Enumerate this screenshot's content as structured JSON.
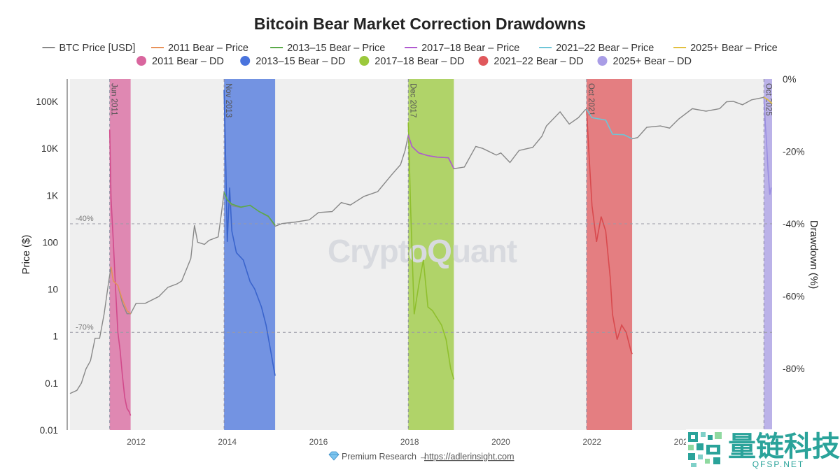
{
  "chart_data": {
    "type": "line",
    "title": "Bitcoin Bear Market Correction Drawdowns",
    "ylabel_left": "Price ($)",
    "ylabel_right": "Drawdown (%)",
    "y_left_scale": "log",
    "y_left_range": [
      0.01,
      300000
    ],
    "y_left_ticks": [
      {
        "value": 0.01,
        "label": "0.01"
      },
      {
        "value": 0.1,
        "label": "0.1"
      },
      {
        "value": 1,
        "label": "1"
      },
      {
        "value": 10,
        "label": "10"
      },
      {
        "value": 100,
        "label": "100"
      },
      {
        "value": 1000,
        "label": "1K"
      },
      {
        "value": 10000,
        "label": "10K"
      },
      {
        "value": 100000,
        "label": "100K"
      }
    ],
    "y_right_range": [
      -97,
      0
    ],
    "y_right_ticks": [
      {
        "value": 0,
        "label": "0%"
      },
      {
        "value": -20,
        "label": "-20%"
      },
      {
        "value": -40,
        "label": "-40%"
      },
      {
        "value": -60,
        "label": "-60%"
      },
      {
        "value": -80,
        "label": "-80%"
      }
    ],
    "x_range": [
      2010.55,
      2025.95
    ],
    "x_ticks": [
      {
        "value": 2012,
        "label": "2012"
      },
      {
        "value": 2014,
        "label": "2014"
      },
      {
        "value": 2016,
        "label": "2016"
      },
      {
        "value": 2018,
        "label": "2018"
      },
      {
        "value": 2020,
        "label": "2020"
      },
      {
        "value": 2022,
        "label": "2022"
      },
      {
        "value": 2024,
        "label": "2024"
      }
    ],
    "grid": false,
    "legend_placement": "top",
    "reference_lines": [
      {
        "value": -40,
        "label": "-40%"
      },
      {
        "value": -70,
        "label": "-70%"
      }
    ],
    "legend": [
      {
        "label": "BTC Price [USD]",
        "kind": "line",
        "color": "#888888"
      },
      {
        "label": "2011 Bear – Price",
        "kind": "line",
        "color": "#e8925a"
      },
      {
        "label": "2013–15 Bear – Price",
        "kind": "line",
        "color": "#5aaa4a"
      },
      {
        "label": "2017–18 Bear – Price",
        "kind": "line",
        "color": "#b05ad0"
      },
      {
        "label": "2021–22 Bear – Price",
        "kind": "line",
        "color": "#6ec6d8"
      },
      {
        "label": "2025+ Bear – Price",
        "kind": "line",
        "color": "#e2c040"
      },
      {
        "label": "2011 Bear – DD",
        "kind": "dot",
        "color": "#d9669e"
      },
      {
        "label": "2013–15 Bear – DD",
        "kind": "dot",
        "color": "#4a74dd"
      },
      {
        "label": "2017–18 Bear – DD",
        "kind": "dot",
        "color": "#9bc93c"
      },
      {
        "label": "2021–22 Bear – DD",
        "kind": "dot",
        "color": "#e0585c"
      },
      {
        "label": "2025+ Bear – DD",
        "kind": "dot",
        "color": "#a99de6"
      }
    ],
    "bear_periods": [
      {
        "label": "Jun 2011",
        "start": 2011.42,
        "end": 2011.88,
        "color": "#d9669e",
        "line_color": "#d14a8b",
        "drawdown": [
          [
            2011.42,
            -14
          ],
          [
            2011.45,
            -33
          ],
          [
            2011.5,
            -45
          ],
          [
            2011.55,
            -58
          ],
          [
            2011.6,
            -70
          ],
          [
            2011.65,
            -75
          ],
          [
            2011.7,
            -82
          ],
          [
            2011.75,
            -88
          ],
          [
            2011.8,
            -91
          ],
          [
            2011.85,
            -92
          ],
          [
            2011.88,
            -93
          ]
        ]
      },
      {
        "label": "Nov 2013",
        "start": 2013.93,
        "end": 2015.05,
        "color": "#4a74dd",
        "line_color": "#3a64cc",
        "drawdown": [
          [
            2013.93,
            -3
          ],
          [
            2013.97,
            -25
          ],
          [
            2014.0,
            -45
          ],
          [
            2014.05,
            -30
          ],
          [
            2014.1,
            -42
          ],
          [
            2014.2,
            -48
          ],
          [
            2014.35,
            -50
          ],
          [
            2014.5,
            -56
          ],
          [
            2014.6,
            -58
          ],
          [
            2014.75,
            -63
          ],
          [
            2014.85,
            -68
          ],
          [
            2014.95,
            -75
          ],
          [
            2015.02,
            -80
          ],
          [
            2015.05,
            -82
          ]
        ]
      },
      {
        "label": "Dec 2017",
        "start": 2017.97,
        "end": 2018.97,
        "color": "#9bc93c",
        "line_color": "#8fbf2e",
        "drawdown": [
          [
            2017.97,
            -12
          ],
          [
            2018.02,
            -35
          ],
          [
            2018.1,
            -65
          ],
          [
            2018.2,
            -57
          ],
          [
            2018.3,
            -50
          ],
          [
            2018.4,
            -63
          ],
          [
            2018.5,
            -64
          ],
          [
            2018.6,
            -66
          ],
          [
            2018.7,
            -68
          ],
          [
            2018.8,
            -72
          ],
          [
            2018.9,
            -80
          ],
          [
            2018.97,
            -83
          ]
        ]
      },
      {
        "label": "Oct 2021",
        "start": 2021.88,
        "end": 2022.88,
        "color": "#e0585c",
        "line_color": "#d84a4e",
        "drawdown": [
          [
            2021.88,
            -8
          ],
          [
            2021.93,
            -20
          ],
          [
            2022.0,
            -35
          ],
          [
            2022.1,
            -45
          ],
          [
            2022.2,
            -38
          ],
          [
            2022.3,
            -42
          ],
          [
            2022.4,
            -55
          ],
          [
            2022.45,
            -65
          ],
          [
            2022.55,
            -72
          ],
          [
            2022.65,
            -68
          ],
          [
            2022.75,
            -70
          ],
          [
            2022.85,
            -75
          ],
          [
            2022.88,
            -76
          ]
        ]
      },
      {
        "label": "Oct 2025",
        "start": 2025.77,
        "end": 2025.95,
        "color": "#a99de6",
        "line_color": "#9a8ee0",
        "drawdown": [
          [
            2025.77,
            -5
          ],
          [
            2025.8,
            -12
          ],
          [
            2025.83,
            -18
          ],
          [
            2025.86,
            -25
          ],
          [
            2025.9,
            -32
          ],
          [
            2025.93,
            -30
          ]
        ]
      }
    ],
    "btc_price": [
      [
        2010.55,
        0.06
      ],
      [
        2010.7,
        0.07
      ],
      [
        2010.8,
        0.1
      ],
      [
        2010.9,
        0.2
      ],
      [
        2011.0,
        0.3
      ],
      [
        2011.1,
        0.9
      ],
      [
        2011.2,
        0.9
      ],
      [
        2011.3,
        3
      ],
      [
        2011.4,
        15
      ],
      [
        2011.45,
        30
      ],
      [
        2011.5,
        15
      ],
      [
        2011.6,
        12
      ],
      [
        2011.7,
        5
      ],
      [
        2011.8,
        3
      ],
      [
        2011.88,
        3
      ],
      [
        2012.0,
        5
      ],
      [
        2012.2,
        5
      ],
      [
        2012.5,
        7
      ],
      [
        2012.7,
        11
      ],
      [
        2012.9,
        13
      ],
      [
        2013.0,
        15
      ],
      [
        2013.2,
        45
      ],
      [
        2013.28,
        230
      ],
      [
        2013.35,
        100
      ],
      [
        2013.5,
        90
      ],
      [
        2013.6,
        110
      ],
      [
        2013.8,
        130
      ],
      [
        2013.87,
        400
      ],
      [
        2013.93,
        1150
      ],
      [
        2014.0,
        800
      ],
      [
        2014.1,
        600
      ],
      [
        2014.3,
        550
      ],
      [
        2014.5,
        620
      ],
      [
        2014.7,
        450
      ],
      [
        2014.9,
        350
      ],
      [
        2015.05,
        220
      ],
      [
        2015.2,
        250
      ],
      [
        2015.5,
        270
      ],
      [
        2015.8,
        300
      ],
      [
        2016.0,
        430
      ],
      [
        2016.3,
        450
      ],
      [
        2016.5,
        700
      ],
      [
        2016.7,
        620
      ],
      [
        2017.0,
        950
      ],
      [
        2017.3,
        1200
      ],
      [
        2017.6,
        2700
      ],
      [
        2017.8,
        4500
      ],
      [
        2017.9,
        9000
      ],
      [
        2017.97,
        19000
      ],
      [
        2018.05,
        11000
      ],
      [
        2018.2,
        8000
      ],
      [
        2018.4,
        7000
      ],
      [
        2018.6,
        6500
      ],
      [
        2018.85,
        6300
      ],
      [
        2018.97,
        3700
      ],
      [
        2019.2,
        4000
      ],
      [
        2019.45,
        11000
      ],
      [
        2019.6,
        10000
      ],
      [
        2019.9,
        7200
      ],
      [
        2020.0,
        8000
      ],
      [
        2020.2,
        5000
      ],
      [
        2020.4,
        9000
      ],
      [
        2020.7,
        10500
      ],
      [
        2020.9,
        18000
      ],
      [
        2021.0,
        30000
      ],
      [
        2021.3,
        60000
      ],
      [
        2021.5,
        33000
      ],
      [
        2021.7,
        45000
      ],
      [
        2021.85,
        66000
      ],
      [
        2021.88,
        68000
      ],
      [
        2022.0,
        45000
      ],
      [
        2022.3,
        40000
      ],
      [
        2022.45,
        20000
      ],
      [
        2022.7,
        19500
      ],
      [
        2022.88,
        16000
      ],
      [
        2023.0,
        17000
      ],
      [
        2023.2,
        28000
      ],
      [
        2023.5,
        30000
      ],
      [
        2023.7,
        27000
      ],
      [
        2023.9,
        42000
      ],
      [
        2024.2,
        70000
      ],
      [
        2024.5,
        62000
      ],
      [
        2024.8,
        70000
      ],
      [
        2024.95,
        98000
      ],
      [
        2025.1,
        100000
      ],
      [
        2025.3,
        85000
      ],
      [
        2025.5,
        108000
      ],
      [
        2025.77,
        122000
      ],
      [
        2025.85,
        110000
      ],
      [
        2025.95,
        90000
      ]
    ],
    "bear_price_series": [
      {
        "label": "2011 Bear – Price",
        "color": "#e8925a",
        "points": [
          [
            2011.45,
            30
          ],
          [
            2011.5,
            15
          ],
          [
            2011.6,
            12
          ],
          [
            2011.7,
            6
          ],
          [
            2011.8,
            3.5
          ],
          [
            2011.88,
            3
          ]
        ]
      },
      {
        "label": "2013–15 Bear – Price",
        "color": "#5aaa4a",
        "points": [
          [
            2013.93,
            1150
          ],
          [
            2014.0,
            800
          ],
          [
            2014.1,
            650
          ],
          [
            2014.3,
            560
          ],
          [
            2014.5,
            610
          ],
          [
            2014.7,
            450
          ],
          [
            2014.9,
            360
          ],
          [
            2015.05,
            230
          ]
        ]
      },
      {
        "label": "2017–18 Bear – Price",
        "color": "#b05ad0",
        "points": [
          [
            2017.97,
            19000
          ],
          [
            2018.05,
            11000
          ],
          [
            2018.2,
            8000
          ],
          [
            2018.4,
            7000
          ],
          [
            2018.6,
            6500
          ],
          [
            2018.85,
            6300
          ],
          [
            2018.97,
            3700
          ]
        ]
      },
      {
        "label": "2021–22 Bear – Price",
        "color": "#6ec6d8",
        "points": [
          [
            2021.88,
            68000
          ],
          [
            2022.0,
            45000
          ],
          [
            2022.3,
            40000
          ],
          [
            2022.45,
            20000
          ],
          [
            2022.7,
            19500
          ],
          [
            2022.88,
            16000
          ]
        ]
      },
      {
        "label": "2025+ Bear – Price",
        "color": "#e2c040",
        "points": [
          [
            2025.77,
            122000
          ],
          [
            2025.85,
            110000
          ],
          [
            2025.95,
            90000
          ]
        ]
      }
    ]
  },
  "watermark": "CryptoQuant",
  "footer": {
    "gem_icon": "gem-icon",
    "text": "Premium Research →",
    "link": "https://adlerinsight.com"
  },
  "logo": {
    "icon": "qr-logo-icon",
    "text": "量链科技",
    "subtext": "QFSP.NET",
    "color": "#2aa39a"
  }
}
